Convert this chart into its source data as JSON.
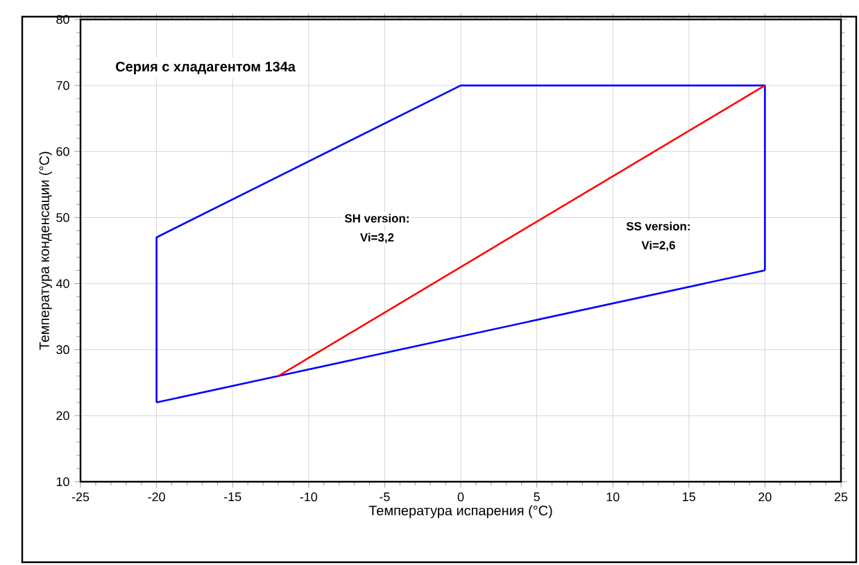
{
  "chart_data": {
    "type": "line",
    "title": "Серия с хладагентом 134a",
    "xlabel": "Температура испарения (°C)",
    "ylabel": "Температура конденсации (°C)",
    "series": [
      {
        "color": "#0000ff",
        "x": [
          -20,
          -20,
          0,
          20,
          20
        ],
        "values": [
          22,
          47,
          70,
          70,
          42
        ]
      },
      {
        "color": "#0000ff",
        "x": [
          -20,
          -12,
          20
        ],
        "values": [
          22,
          26,
          42
        ]
      },
      {
        "color": "#ff0000",
        "x": [
          -12,
          20
        ],
        "values": [
          26,
          70
        ]
      }
    ],
    "annotations": [
      "SH version:",
      "Vi=3,2",
      "SS version:",
      "Vi=2,6"
    ],
    "xlim": [
      -25,
      25
    ],
    "ylim": [
      10,
      80
    ],
    "xticks": [
      -25,
      -20,
      -15,
      -10,
      -5,
      0,
      5,
      10,
      15,
      20,
      25
    ],
    "yticks": [
      10,
      20,
      30,
      40,
      50,
      60,
      70,
      80
    ],
    "grid": true,
    "marker": "none",
    "line_style": "solid"
  }
}
